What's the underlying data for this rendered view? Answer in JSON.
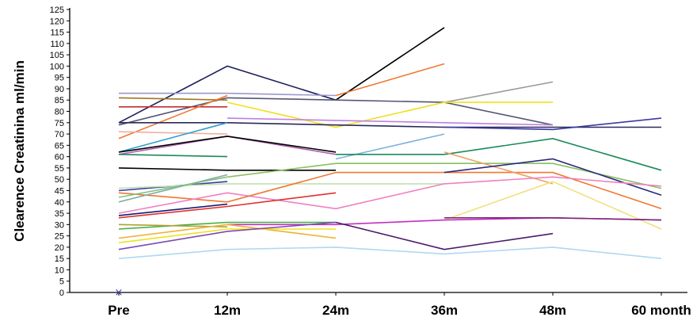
{
  "chart_data": {
    "type": "line",
    "ylabel": "Clearence Creatinina ml/min",
    "xlabel": "",
    "title": "",
    "categories": [
      "Pre",
      "12m",
      "24m",
      "36m",
      "48m",
      "60 month"
    ],
    "ylim": [
      0,
      125
    ],
    "ytick_step": 5,
    "grid": false,
    "legend": "none",
    "marker": {
      "category": "Pre",
      "value": 0,
      "symbol": "×",
      "color": "#3b3bb3"
    },
    "series": [
      {
        "color": "#1f1f5e",
        "values": [
          75,
          100,
          85,
          null,
          null,
          null
        ]
      },
      {
        "color": "#000000",
        "values": [
          null,
          null,
          85,
          117,
          null,
          null
        ]
      },
      {
        "color": "#f07830",
        "values": [
          null,
          null,
          87,
          101,
          null,
          null
        ]
      },
      {
        "color": "#9a9acc",
        "values": [
          88,
          88,
          87,
          null,
          null,
          null
        ]
      },
      {
        "color": "#555577",
        "values": [
          74,
          86,
          85,
          84,
          74,
          null
        ]
      },
      {
        "color": "#9a9a9a",
        "values": [
          null,
          null,
          null,
          84,
          93,
          null
        ]
      },
      {
        "color": "#a07820",
        "values": [
          86,
          85,
          null,
          null,
          null,
          null
        ]
      },
      {
        "color": "#c03030",
        "values": [
          82,
          82,
          null,
          null,
          null,
          null
        ]
      },
      {
        "color": "#f0e020",
        "values": [
          null,
          84,
          73,
          84,
          84,
          null
        ]
      },
      {
        "color": "#f07830",
        "values": [
          68,
          87,
          null,
          null,
          null,
          null
        ]
      },
      {
        "color": "#2a2a5e",
        "values": [
          75,
          75,
          74,
          73,
          73,
          73
        ]
      },
      {
        "color": "#3a3aa0",
        "values": [
          null,
          null,
          null,
          73,
          72,
          77
        ]
      },
      {
        "color": "#c080e0",
        "values": [
          null,
          77,
          76,
          75,
          74,
          null
        ]
      },
      {
        "color": "#f0b0a0",
        "values": [
          71,
          70,
          null,
          null,
          null,
          null
        ]
      },
      {
        "color": "#30a0d0",
        "values": [
          62,
          75,
          null,
          null,
          null,
          null
        ]
      },
      {
        "color": "#b060b0",
        "values": [
          61,
          69,
          61,
          null,
          null,
          null
        ]
      },
      {
        "color": "#000000",
        "values": [
          62,
          69,
          62,
          null,
          null,
          null
        ]
      },
      {
        "color": "#1a8a5a",
        "values": [
          61,
          60,
          null,
          null,
          null,
          null
        ]
      },
      {
        "color": "#7fb0e0",
        "values": [
          60,
          null,
          59,
          70,
          null,
          null
        ]
      },
      {
        "color": "#1a8a5a",
        "values": [
          null,
          null,
          61,
          61,
          68,
          54
        ]
      },
      {
        "color": "#000000",
        "values": [
          55,
          54,
          54,
          null,
          null,
          null
        ]
      },
      {
        "color": "#8ac060",
        "values": [
          null,
          51,
          57,
          57,
          57,
          46
        ]
      },
      {
        "color": "#f07830",
        "values": [
          null,
          null,
          53,
          53,
          53,
          37
        ]
      },
      {
        "color": "#f0a060",
        "values": [
          null,
          null,
          null,
          62,
          48,
          null
        ]
      },
      {
        "color": "#2a2a7e",
        "values": [
          null,
          null,
          null,
          53,
          59,
          43
        ]
      },
      {
        "color": "#3a3aa0",
        "values": [
          45,
          49,
          null,
          null,
          null,
          null
        ]
      },
      {
        "color": "#f07830",
        "values": [
          44,
          40,
          null,
          null,
          null,
          null
        ]
      },
      {
        "color": "#c0e0b0",
        "values": [
          46,
          48,
          48,
          48,
          null,
          null
        ]
      },
      {
        "color": "#f080c0",
        "values": [
          35,
          44,
          37,
          48,
          51,
          47
        ]
      },
      {
        "color": "#7fb0a0",
        "values": [
          40,
          52,
          null,
          null,
          null,
          null
        ]
      },
      {
        "color": "#80c080",
        "values": [
          42,
          51,
          null,
          null,
          null,
          null
        ]
      },
      {
        "color": "#e03030",
        "values": [
          33,
          38,
          44,
          null,
          null,
          null
        ]
      },
      {
        "color": "#f07830",
        "values": [
          null,
          40,
          53,
          null,
          null,
          null
        ]
      },
      {
        "color": "#1a1a6e",
        "values": [
          34,
          39,
          null,
          null,
          null,
          null
        ]
      },
      {
        "color": "#f0e080",
        "values": [
          null,
          null,
          null,
          32,
          49,
          28
        ]
      },
      {
        "color": "#c030c0",
        "values": [
          null,
          30,
          30,
          32,
          33,
          32
        ]
      },
      {
        "color": "#7a2a7a",
        "values": [
          null,
          null,
          null,
          33,
          33,
          32
        ]
      },
      {
        "color": "#40b040",
        "values": [
          28,
          31,
          31,
          null,
          null,
          null
        ]
      },
      {
        "color": "#b0a030",
        "values": [
          30,
          29,
          null,
          null,
          null,
          null
        ]
      },
      {
        "color": "#f0b030",
        "values": [
          24,
          30,
          24,
          null,
          null,
          null
        ]
      },
      {
        "color": "#f0e020",
        "values": [
          22,
          28,
          28,
          null,
          null,
          null
        ]
      },
      {
        "color": "#7a4ab0",
        "values": [
          19,
          27,
          31,
          null,
          null,
          null
        ]
      },
      {
        "color": "#4a1a6a",
        "values": [
          null,
          null,
          31,
          19,
          26,
          null
        ]
      },
      {
        "color": "#b0d8f0",
        "values": [
          15,
          19,
          20,
          17,
          20,
          15
        ]
      }
    ]
  }
}
